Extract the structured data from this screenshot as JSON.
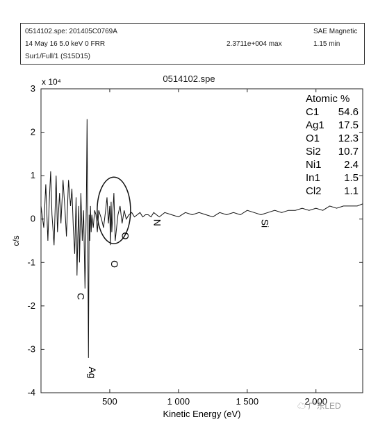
{
  "header": {
    "line1_left": "0514102.spe: 201405C0769A",
    "line1_right": "SAE Magnetic",
    "line2_left": "14 May 16  5.0 keV  0  FRR",
    "line2_mid": "2.3711e+004 max",
    "line2_right": "1.15 min",
    "line3_left": "Sur1/Full/1 (S15D15)"
  },
  "chart_data": {
    "type": "line",
    "title": "0514102.spe",
    "xlabel": "Kinetic Energy (eV)",
    "ylabel": "c/s",
    "y_multiplier": "x 10⁴",
    "xlim": [
      0,
      2340
    ],
    "ylim": [
      -4,
      3
    ],
    "x_ticks": [
      500,
      1000,
      1500,
      2000
    ],
    "x_tick_labels": [
      "500",
      "1 000",
      "1 500",
      "2 000"
    ],
    "y_ticks": [
      -4,
      -3,
      -2,
      -1,
      0,
      1,
      2,
      3
    ],
    "y_tick_labels": [
      "-4",
      "-3",
      "-2",
      "-1",
      "0",
      "1",
      "2",
      "3"
    ],
    "series": [
      {
        "x": [
          0,
          20,
          35,
          50,
          60,
          70,
          80,
          95,
          110,
          120,
          135,
          145,
          160,
          175,
          185,
          200,
          215,
          225,
          235,
          245,
          255,
          262,
          268,
          275,
          280,
          290,
          300,
          310,
          320,
          330,
          335,
          340,
          345,
          350,
          355,
          360,
          365,
          370,
          380,
          390,
          400,
          410,
          420,
          440,
          455,
          470,
          480,
          490,
          500,
          505,
          510,
          515,
          520,
          530,
          540,
          550,
          560,
          575,
          590,
          605,
          620,
          640,
          660,
          680,
          700,
          720,
          740,
          760,
          780,
          800,
          820,
          840,
          860,
          880,
          900,
          950,
          1000,
          1050,
          1100,
          1150,
          1200,
          1250,
          1300,
          1350,
          1400,
          1450,
          1500,
          1550,
          1600,
          1650,
          1700,
          1750,
          1800,
          1850,
          1900,
          1950,
          2000,
          2050,
          2100,
          2150,
          2200,
          2250,
          2300,
          2340
        ],
        "y": [
          0.3,
          -0.2,
          0.8,
          -0.5,
          0.4,
          1.1,
          0.1,
          -0.6,
          1.0,
          -0.3,
          0.6,
          -0.1,
          0.9,
          0.2,
          -0.4,
          0.9,
          0.3,
          0.7,
          -0.2,
          -0.8,
          0.5,
          -1.3,
          -0.4,
          0.3,
          -1.0,
          0.6,
          -0.5,
          0.2,
          -1.6,
          0.4,
          2.3,
          -0.3,
          -3.2,
          0.1,
          -0.5,
          0.3,
          -0.3,
          0.1,
          -0.2,
          0.2,
          0.1,
          -0.3,
          0.2,
          0.0,
          -0.2,
          0.2,
          0.5,
          -0.1,
          0.3,
          -0.6,
          0.4,
          -0.3,
          0.0,
          0.6,
          -0.5,
          -0.2,
          0.1,
          0.3,
          -0.1,
          0.2,
          0.0,
          0.1,
          0.15,
          0.05,
          0.1,
          0.15,
          0.05,
          0.1,
          0.1,
          0.05,
          0.15,
          0.1,
          0.05,
          0.1,
          0.15,
          0.1,
          0.05,
          0.15,
          0.1,
          0.15,
          0.1,
          0.05,
          0.15,
          0.1,
          0.15,
          0.1,
          0.2,
          0.15,
          0.1,
          0.15,
          0.2,
          0.15,
          0.2,
          0.2,
          0.25,
          0.2,
          0.25,
          0.2,
          0.3,
          0.25,
          0.3,
          0.3,
          0.3,
          0.35
        ]
      }
    ],
    "peak_labels": [
      {
        "label": "C",
        "x": 265,
        "y": -1.7
      },
      {
        "label": "Ag",
        "x": 348,
        "y": -3.4
      },
      {
        "label": "O",
        "x": 510,
        "y": -0.95
      },
      {
        "label": "O",
        "x": 590,
        "y": -0.3
      },
      {
        "label": "N",
        "x": 820,
        "y": 0.0
      },
      {
        "label": "Si",
        "x": 1605,
        "y": 0.0
      }
    ],
    "legend": {
      "title": "Atomic %",
      "entries": [
        {
          "element": "C1",
          "value": "54.6"
        },
        {
          "element": "Ag1",
          "value": "17.5"
        },
        {
          "element": "O1",
          "value": "12.3"
        },
        {
          "element": "Si2",
          "value": "10.7"
        },
        {
          "element": "Ni1",
          "value": "2.4"
        },
        {
          "element": "In1",
          "value": "1.5"
        },
        {
          "element": "Cl2",
          "value": "1.1"
        }
      ]
    },
    "annotation": "ellipse around O peak",
    "grid": false
  },
  "watermark": "广东LED"
}
